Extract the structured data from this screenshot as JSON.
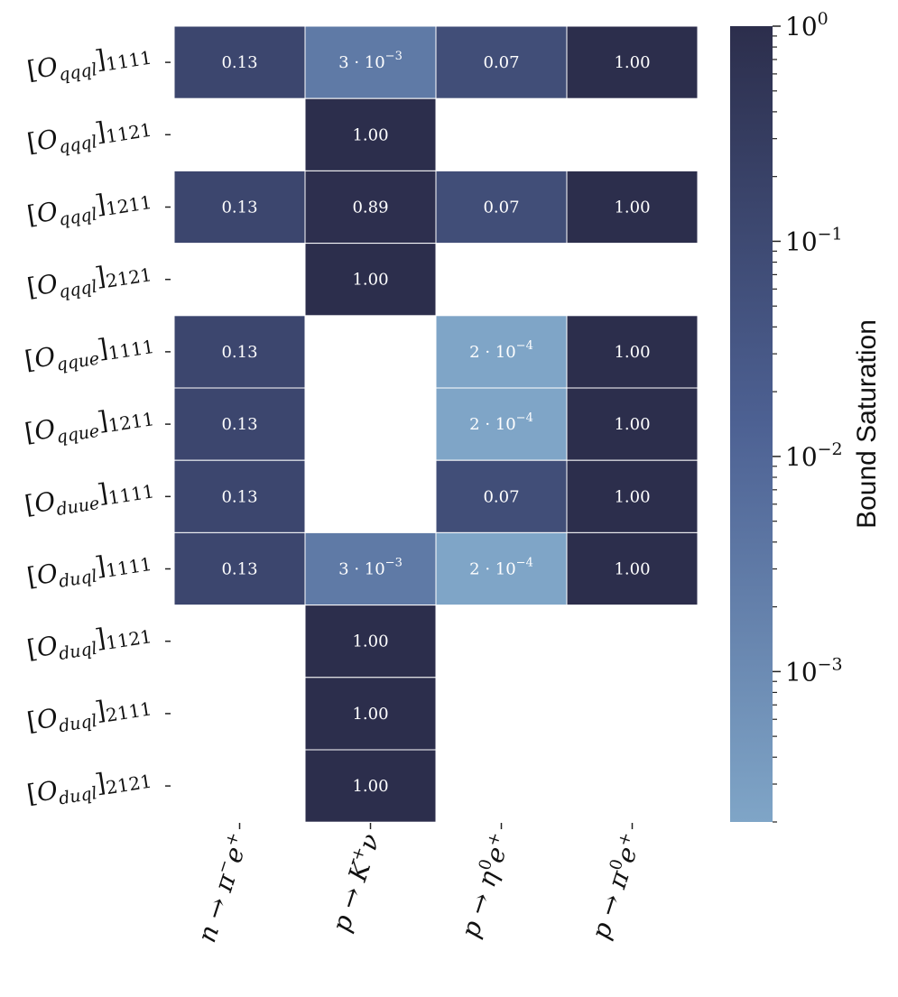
{
  "chart_data": {
    "type": "heatmap",
    "rows": [
      {
        "op": "O",
        "sub": "qqql",
        "idx": "1111"
      },
      {
        "op": "O",
        "sub": "qqql",
        "idx": "1121"
      },
      {
        "op": "O",
        "sub": "qqql",
        "idx": "1211"
      },
      {
        "op": "O",
        "sub": "qqql",
        "idx": "2121"
      },
      {
        "op": "O",
        "sub": "qque",
        "idx": "1111"
      },
      {
        "op": "O",
        "sub": "qque",
        "idx": "1211"
      },
      {
        "op": "O",
        "sub": "duue",
        "idx": "1111"
      },
      {
        "op": "O",
        "sub": "duql",
        "idx": "1111"
      },
      {
        "op": "O",
        "sub": "duql",
        "idx": "1121"
      },
      {
        "op": "O",
        "sub": "duql",
        "idx": "2111"
      },
      {
        "op": "O",
        "sub": "duql",
        "idx": "2121"
      }
    ],
    "columns": [
      {
        "p": "n",
        "arrow": "→",
        "m": "π",
        "msup": "−",
        "l": "e",
        "lsup": "+"
      },
      {
        "p": "p",
        "arrow": "→",
        "m": "K",
        "msup": "+",
        "l": "ν",
        "lsup": ""
      },
      {
        "p": "p",
        "arrow": "→",
        "m": "η",
        "msup": "0",
        "l": "e",
        "lsup": "+"
      },
      {
        "p": "p",
        "arrow": "→",
        "m": "π",
        "msup": "0",
        "l": "e",
        "lsup": "+"
      }
    ],
    "values": [
      [
        0.13,
        0.003,
        0.07,
        1.0
      ],
      [
        null,
        1.0,
        null,
        null
      ],
      [
        0.13,
        0.89,
        0.07,
        1.0
      ],
      [
        null,
        1.0,
        null,
        null
      ],
      [
        0.13,
        null,
        0.0002,
        1.0
      ],
      [
        0.13,
        null,
        0.0002,
        1.0
      ],
      [
        0.13,
        null,
        0.07,
        1.0
      ],
      [
        0.13,
        0.003,
        0.0002,
        1.0
      ],
      [
        null,
        1.0,
        null,
        null
      ],
      [
        null,
        1.0,
        null,
        null
      ],
      [
        null,
        1.0,
        null,
        null
      ]
    ],
    "labels": [
      [
        "0.13",
        "3 · 10",
        "0.07",
        "1.00"
      ],
      [
        null,
        "1.00",
        null,
        null
      ],
      [
        "0.13",
        "0.89",
        "0.07",
        "1.00"
      ],
      [
        null,
        "1.00",
        null,
        null
      ],
      [
        "0.13",
        null,
        "2 · 10",
        "1.00"
      ],
      [
        "0.13",
        null,
        "2 · 10",
        "1.00"
      ],
      [
        "0.13",
        null,
        "0.07",
        "1.00"
      ],
      [
        "0.13",
        "3 · 10",
        "2 · 10",
        "1.00"
      ],
      [
        null,
        "1.00",
        null,
        null
      ],
      [
        null,
        "1.00",
        null,
        null
      ],
      [
        null,
        "1.00",
        null,
        null
      ]
    ],
    "label_exponents": [
      [
        null,
        "−3",
        null,
        null
      ],
      [
        null,
        null,
        null,
        null
      ],
      [
        null,
        null,
        null,
        null
      ],
      [
        null,
        null,
        null,
        null
      ],
      [
        null,
        null,
        "−4",
        null
      ],
      [
        null,
        null,
        "−4",
        null
      ],
      [
        null,
        null,
        null,
        null
      ],
      [
        null,
        "−3",
        "−4",
        null
      ],
      [
        null,
        null,
        null,
        null
      ],
      [
        null,
        null,
        null,
        null
      ],
      [
        null,
        null,
        null,
        null
      ]
    ],
    "colorbar": {
      "label": "Bound Saturation",
      "scale": "log",
      "range": [
        0.0002,
        1.0
      ],
      "ticks": [
        {
          "base": "10",
          "exp": "0",
          "value": 1.0
        },
        {
          "base": "10",
          "exp": "−1",
          "value": 0.1
        },
        {
          "base": "10",
          "exp": "−2",
          "value": 0.01
        },
        {
          "base": "10",
          "exp": "−3",
          "value": 0.001
        }
      ],
      "color_high": "#2c2e4c",
      "color_low": "#7fa5c7"
    },
    "cell_border_color": "#ffffff",
    "cell_text_color": "#ffffff"
  }
}
